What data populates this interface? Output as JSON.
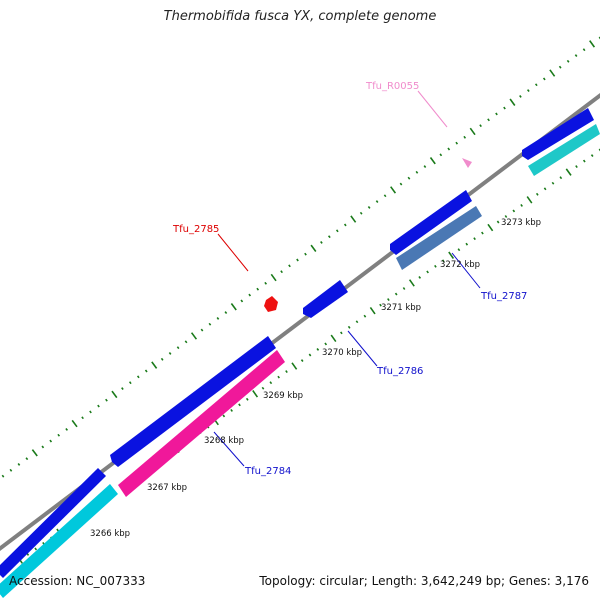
{
  "title": "Thermobifida fusca YX, complete genome",
  "accession": "Accession: NC_007333",
  "summary": "Topology: circular; Length: 3,642,249 bp; Genes: 3,176",
  "colors": {
    "backbone": "#808080",
    "tick": "#1a7a1a",
    "blue_gene": "#0a12e0",
    "cyan_gene": "#00c8dc",
    "teal_gene": "#1ec8c8",
    "magenta_gene": "#f0189a",
    "steel_gene": "#4a78b4",
    "red_marker": "#ee1111",
    "pink_marker": "#f08ccc"
  },
  "ruler": {
    "labels": [
      "3266 kbp",
      "3267 kbp",
      "3268 kbp",
      "3269 kbp",
      "3270 kbp",
      "3271 kbp",
      "3272 kbp",
      "3273 kbp"
    ]
  },
  "gene_labels": {
    "tfu_r0055": "Tfu_R0055",
    "tfu_2785": "Tfu_2785",
    "tfu_2787": "Tfu_2787",
    "tfu_2786": "Tfu_2786",
    "tfu_2784": "Tfu_2784"
  },
  "label_colors": {
    "tfu_r0055": "#f08ccc",
    "tfu_2785": "#dd0000",
    "tfu_2787": "#1010cc",
    "tfu_2786": "#1010cc",
    "tfu_2784": "#1010cc"
  }
}
